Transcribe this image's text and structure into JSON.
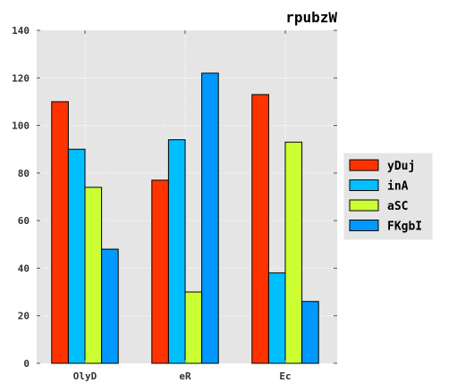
{
  "chart_data": {
    "type": "bar",
    "title": "rpubzW",
    "xlabel": "",
    "ylabel": "",
    "categories": [
      "OlyD",
      "eR",
      "Ec"
    ],
    "series": [
      {
        "name": "yDuj",
        "values": [
          110,
          77,
          113
        ],
        "color": "#ff3300"
      },
      {
        "name": "inA",
        "values": [
          90,
          94,
          38
        ],
        "color": "#00bfff"
      },
      {
        "name": "aSC",
        "values": [
          74,
          30,
          93
        ],
        "color": "#ccff33"
      },
      {
        "name": "FKgbI",
        "values": [
          48,
          122,
          26
        ],
        "color": "#0099ff"
      }
    ],
    "ylim": [
      0,
      140
    ],
    "yticks": [
      0,
      20,
      40,
      60,
      80,
      100,
      120,
      140
    ],
    "grid": true,
    "legend_position": "right, outside plot area",
    "background_color": "#e5e5e5"
  }
}
